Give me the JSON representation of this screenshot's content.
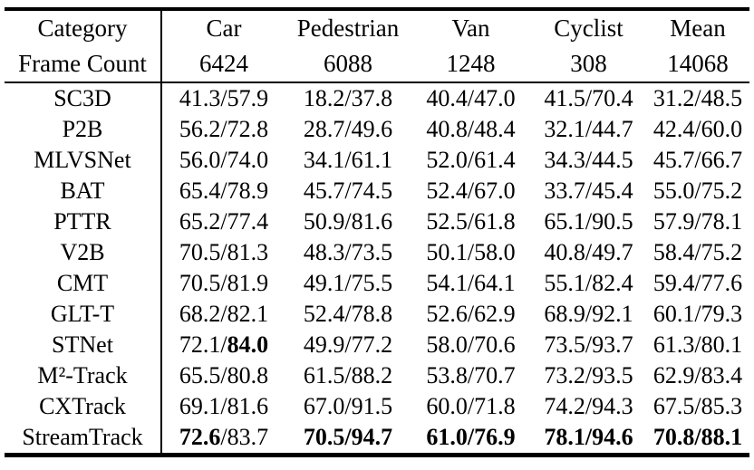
{
  "chart_data": {
    "type": "table",
    "value_format": "success/precision",
    "header": {
      "category_label": "Category",
      "frame_count_label": "Frame Count",
      "columns": [
        {
          "label": "Car",
          "frames": "6424"
        },
        {
          "label": "Pedestrian",
          "frames": "6088"
        },
        {
          "label": "Van",
          "frames": "1248"
        },
        {
          "label": "Cyclist",
          "frames": "308"
        },
        {
          "label": "Mean",
          "frames": "14068"
        }
      ]
    },
    "rows": [
      {
        "method": "SC3D",
        "cells": [
          {
            "v": "41.3/57.9",
            "bold": "none"
          },
          {
            "v": "18.2/37.8",
            "bold": "none"
          },
          {
            "v": "40.4/47.0",
            "bold": "none"
          },
          {
            "v": "41.5/70.4",
            "bold": "none"
          },
          {
            "v": "31.2/48.5",
            "bold": "none"
          }
        ]
      },
      {
        "method": "P2B",
        "cells": [
          {
            "v": "56.2/72.8",
            "bold": "none"
          },
          {
            "v": "28.7/49.6",
            "bold": "none"
          },
          {
            "v": "40.8/48.4",
            "bold": "none"
          },
          {
            "v": "32.1/44.7",
            "bold": "none"
          },
          {
            "v": "42.4/60.0",
            "bold": "none"
          }
        ]
      },
      {
        "method": "MLVSNet",
        "cells": [
          {
            "v": "56.0/74.0",
            "bold": "none"
          },
          {
            "v": "34.1/61.1",
            "bold": "none"
          },
          {
            "v": "52.0/61.4",
            "bold": "none"
          },
          {
            "v": "34.3/44.5",
            "bold": "none"
          },
          {
            "v": "45.7/66.7",
            "bold": "none"
          }
        ]
      },
      {
        "method": "BAT",
        "cells": [
          {
            "v": "65.4/78.9",
            "bold": "none"
          },
          {
            "v": "45.7/74.5",
            "bold": "none"
          },
          {
            "v": "52.4/67.0",
            "bold": "none"
          },
          {
            "v": "33.7/45.4",
            "bold": "none"
          },
          {
            "v": "55.0/75.2",
            "bold": "none"
          }
        ]
      },
      {
        "method": "PTTR",
        "cells": [
          {
            "v": "65.2/77.4",
            "bold": "none"
          },
          {
            "v": "50.9/81.6",
            "bold": "none"
          },
          {
            "v": "52.5/61.8",
            "bold": "none"
          },
          {
            "v": "65.1/90.5",
            "bold": "none"
          },
          {
            "v": "57.9/78.1",
            "bold": "none"
          }
        ]
      },
      {
        "method": "V2B",
        "cells": [
          {
            "v": "70.5/81.3",
            "bold": "none"
          },
          {
            "v": "48.3/73.5",
            "bold": "none"
          },
          {
            "v": "50.1/58.0",
            "bold": "none"
          },
          {
            "v": "40.8/49.7",
            "bold": "none"
          },
          {
            "v": "58.4/75.2",
            "bold": "none"
          }
        ]
      },
      {
        "method": "CMT",
        "cells": [
          {
            "v": "70.5/81.9",
            "bold": "none"
          },
          {
            "v": "49.1/75.5",
            "bold": "none"
          },
          {
            "v": "54.1/64.1",
            "bold": "none"
          },
          {
            "v": "55.1/82.4",
            "bold": "none"
          },
          {
            "v": "59.4/77.6",
            "bold": "none"
          }
        ]
      },
      {
        "method": "GLT-T",
        "cells": [
          {
            "v": "68.2/82.1",
            "bold": "none"
          },
          {
            "v": "52.4/78.8",
            "bold": "none"
          },
          {
            "v": "52.6/62.9",
            "bold": "none"
          },
          {
            "v": "68.9/92.1",
            "bold": "none"
          },
          {
            "v": "60.1/79.3",
            "bold": "none"
          }
        ]
      },
      {
        "method": "STNet",
        "cells": [
          {
            "v": "72.1/84.0",
            "bold": "second"
          },
          {
            "v": "49.9/77.2",
            "bold": "none"
          },
          {
            "v": "58.0/70.6",
            "bold": "none"
          },
          {
            "v": "73.5/93.7",
            "bold": "none"
          },
          {
            "v": "61.3/80.1",
            "bold": "none"
          }
        ]
      },
      {
        "method": "M²-Track",
        "cells": [
          {
            "v": "65.5/80.8",
            "bold": "none"
          },
          {
            "v": "61.5/88.2",
            "bold": "none"
          },
          {
            "v": "53.8/70.7",
            "bold": "none"
          },
          {
            "v": "73.2/93.5",
            "bold": "none"
          },
          {
            "v": "62.9/83.4",
            "bold": "none"
          }
        ]
      },
      {
        "method": "CXTrack",
        "cells": [
          {
            "v": "69.1/81.6",
            "bold": "none"
          },
          {
            "v": "67.0/91.5",
            "bold": "none"
          },
          {
            "v": "60.0/71.8",
            "bold": "none"
          },
          {
            "v": "74.2/94.3",
            "bold": "none"
          },
          {
            "v": "67.5/85.3",
            "bold": "none"
          }
        ]
      },
      {
        "method": "StreamTrack",
        "cells": [
          {
            "v": "72.6/83.7",
            "bold": "first"
          },
          {
            "v": "70.5/94.7",
            "bold": "both"
          },
          {
            "v": "61.0/76.9",
            "bold": "both"
          },
          {
            "v": "78.1/94.6",
            "bold": "both"
          },
          {
            "v": "70.8/88.1",
            "bold": "both"
          }
        ]
      }
    ]
  }
}
